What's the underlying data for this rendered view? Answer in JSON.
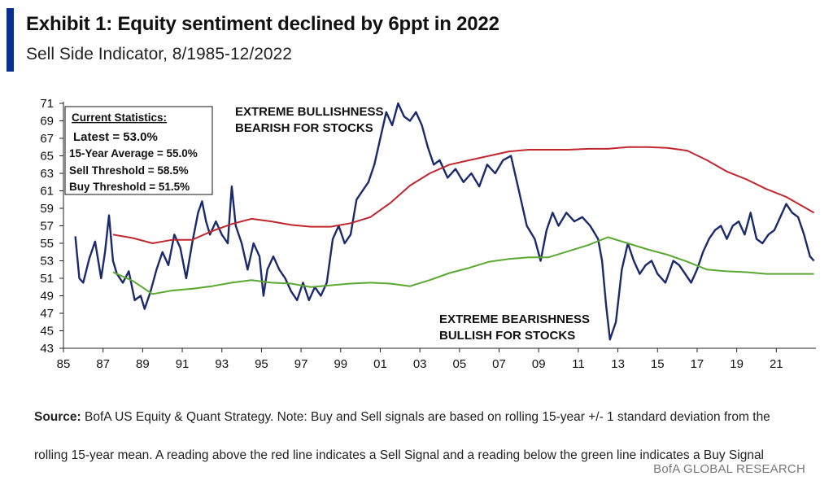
{
  "header": {
    "title": "Exhibit 1: Equity sentiment declined by 6ppt in 2022",
    "subtitle": "Sell Side Indicator, 8/1985-12/2022"
  },
  "notes": {
    "source_label": "Source:",
    "source_text": " BofA US Equity & Quant Strategy. Note: Buy and Sell signals are based on rolling 15-year +/- 1 standard deviation from the rolling 15-year mean. A reading above the red line indicates a Sell Signal and a reading below the green line indicates a Buy Signal"
  },
  "footer": {
    "brand": "BofA GLOBAL RESEARCH"
  },
  "colors": {
    "accent": "#0a2f8f",
    "indicator": "#1a2a6c",
    "sell": "#c0272d",
    "buy": "#5aa832"
  },
  "chart_data": {
    "type": "line",
    "title": "Exhibit 1: Equity sentiment declined by 6ppt in 2022",
    "subtitle": "Sell Side Indicator, 8/1985-12/2022",
    "xlim": [
      1985,
      2023
    ],
    "ylim": [
      43,
      71
    ],
    "x_ticks": [
      "85",
      "87",
      "89",
      "91",
      "93",
      "95",
      "97",
      "99",
      "01",
      "03",
      "05",
      "07",
      "09",
      "11",
      "13",
      "15",
      "17",
      "19",
      "21"
    ],
    "y_ticks": [
      43,
      45,
      47,
      49,
      51,
      53,
      55,
      57,
      59,
      61,
      63,
      65,
      67,
      69,
      71
    ],
    "grid": false,
    "stats_box": {
      "heading": "Current Statistics:",
      "lines": [
        "Latest = 53.0%",
        "15-Year Average = 55.0%",
        "Sell Threshold = 58.5%",
        "Buy Threshold = 51.5%"
      ]
    },
    "annotations": {
      "bullish": [
        "EXTREME BULLISHNESS",
        "BEARISH FOR STOCKS"
      ],
      "bearish": [
        "EXTREME BEARISHNESS",
        "BULLISH FOR STOCKS"
      ]
    },
    "series": [
      {
        "name": "Sell Side Indicator",
        "color": "#1a2a6c",
        "x": [
          1985.6,
          1985.8,
          1986.0,
          1986.3,
          1986.6,
          1986.9,
          1987.1,
          1987.3,
          1987.5,
          1987.7,
          1988.0,
          1988.3,
          1988.6,
          1988.9,
          1989.1,
          1989.4,
          1989.7,
          1990.0,
          1990.3,
          1990.6,
          1990.9,
          1991.2,
          1991.5,
          1991.8,
          1992.0,
          1992.2,
          1992.4,
          1992.7,
          1993.0,
          1993.3,
          1993.5,
          1993.7,
          1994.0,
          1994.3,
          1994.6,
          1994.9,
          1995.1,
          1995.3,
          1995.6,
          1995.9,
          1996.2,
          1996.5,
          1996.8,
          1997.1,
          1997.4,
          1997.7,
          1998.0,
          1998.3,
          1998.6,
          1998.9,
          1999.2,
          1999.5,
          1999.8,
          2000.1,
          2000.4,
          2000.7,
          2001.0,
          2001.3,
          2001.6,
          2001.9,
          2002.2,
          2002.5,
          2002.8,
          2003.1,
          2003.4,
          2003.7,
          2004.0,
          2004.4,
          2004.8,
          2005.2,
          2005.6,
          2006.0,
          2006.4,
          2006.8,
          2007.2,
          2007.6,
          2008.0,
          2008.4,
          2008.8,
          2009.1,
          2009.4,
          2009.7,
          2010.0,
          2010.4,
          2010.8,
          2011.2,
          2011.6,
          2012.0,
          2012.2,
          2012.4,
          2012.6,
          2012.9,
          2013.2,
          2013.5,
          2013.8,
          2014.1,
          2014.4,
          2014.7,
          2015.0,
          2015.4,
          2015.8,
          2016.1,
          2016.4,
          2016.7,
          2017.0,
          2017.3,
          2017.6,
          2017.9,
          2018.2,
          2018.5,
          2018.8,
          2019.1,
          2019.4,
          2019.7,
          2020.0,
          2020.3,
          2020.6,
          2020.9,
          2021.2,
          2021.5,
          2021.8,
          2022.1,
          2022.4,
          2022.7,
          2022.9
        ],
        "values": [
          55.8,
          51.0,
          50.5,
          53.2,
          55.2,
          51.0,
          54.0,
          58.2,
          53.0,
          51.5,
          50.5,
          51.8,
          48.5,
          49.0,
          47.5,
          49.5,
          52.0,
          54.0,
          52.5,
          56.0,
          54.5,
          51.0,
          55.0,
          58.5,
          59.8,
          57.5,
          56.0,
          57.5,
          56.0,
          55.0,
          61.5,
          57.0,
          55.0,
          52.0,
          55.0,
          53.5,
          49.0,
          52.0,
          53.5,
          52.0,
          51.0,
          49.5,
          48.5,
          50.5,
          48.5,
          50.0,
          49.0,
          50.5,
          55.5,
          57.0,
          55.0,
          56.0,
          60.0,
          61.0,
          62.0,
          64.0,
          67.0,
          70.0,
          68.5,
          71.0,
          69.5,
          69.0,
          70.0,
          68.5,
          66.0,
          64.0,
          64.5,
          62.5,
          63.5,
          62.0,
          63.0,
          61.5,
          64.0,
          63.0,
          64.5,
          65.0,
          61.0,
          57.0,
          55.5,
          53.0,
          56.5,
          58.5,
          57.0,
          58.5,
          57.5,
          58.0,
          57.0,
          55.5,
          53.0,
          48.0,
          44.0,
          46.0,
          52.0,
          55.0,
          53.0,
          51.5,
          52.5,
          53.0,
          51.5,
          50.5,
          53.0,
          52.5,
          51.5,
          50.5,
          52.0,
          54.0,
          55.5,
          56.5,
          57.0,
          55.5,
          57.0,
          57.5,
          56.0,
          58.5,
          55.5,
          55.0,
          56.0,
          56.5,
          58.0,
          59.5,
          58.5,
          58.0,
          56.0,
          53.5,
          53.0
        ]
      },
      {
        "name": "Sell Threshold",
        "color": "#c0272d",
        "x": [
          1987.5,
          1988.5,
          1989.5,
          1990.5,
          1991.5,
          1992.5,
          1993.5,
          1994.5,
          1995.5,
          1996.5,
          1997.5,
          1998.5,
          1999.5,
          2000.5,
          2001.5,
          2002.5,
          2003.5,
          2004.5,
          2005.5,
          2006.5,
          2007.5,
          2008.5,
          2009.5,
          2010.5,
          2011.5,
          2012.5,
          2013.5,
          2014.5,
          2015.5,
          2016.5,
          2017.5,
          2018.5,
          2019.5,
          2020.5,
          2021.5,
          2022.9
        ],
        "values": [
          56.0,
          55.6,
          55.0,
          55.4,
          55.4,
          56.4,
          57.2,
          57.8,
          57.5,
          57.1,
          56.9,
          56.9,
          57.3,
          58.0,
          59.6,
          61.6,
          63.0,
          64.0,
          64.5,
          65.0,
          65.5,
          65.7,
          65.7,
          65.7,
          65.8,
          65.8,
          66.0,
          66.0,
          65.9,
          65.6,
          64.5,
          63.2,
          62.3,
          61.2,
          60.3,
          58.5
        ]
      },
      {
        "name": "Buy Threshold",
        "color": "#5aa832",
        "x": [
          1987.5,
          1988.5,
          1989.5,
          1990.5,
          1991.5,
          1992.5,
          1993.5,
          1994.5,
          1995.5,
          1996.5,
          1997.5,
          1998.5,
          1999.5,
          2000.5,
          2001.5,
          2002.5,
          2003.5,
          2004.5,
          2005.5,
          2006.5,
          2007.5,
          2008.5,
          2009.5,
          2010.5,
          2011.5,
          2012.5,
          2013.5,
          2014.5,
          2015.5,
          2016.5,
          2017.5,
          2018.5,
          2019.5,
          2020.5,
          2021.5,
          2022.9
        ],
        "values": [
          51.7,
          50.7,
          49.2,
          49.6,
          49.8,
          50.1,
          50.5,
          50.8,
          50.5,
          50.4,
          50.0,
          50.2,
          50.4,
          50.5,
          50.4,
          50.1,
          50.8,
          51.6,
          52.2,
          52.9,
          53.2,
          53.4,
          53.4,
          54.1,
          54.8,
          55.7,
          55.0,
          54.3,
          53.7,
          52.9,
          52.0,
          51.8,
          51.7,
          51.5,
          51.5,
          51.5
        ]
      }
    ]
  }
}
